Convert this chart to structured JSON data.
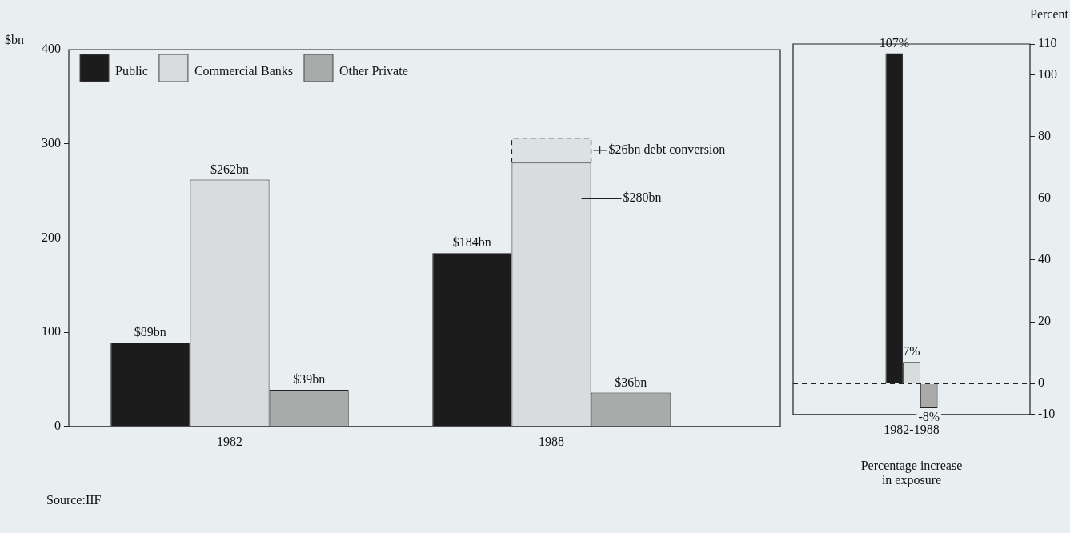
{
  "chart_data": [
    {
      "type": "bar",
      "ylabel": "$bn",
      "categories": [
        "1982",
        "1988"
      ],
      "series": [
        {
          "name": "Public",
          "color": "#1c1c1c",
          "values": [
            89,
            184
          ],
          "value_labels": [
            "$89bn",
            "$184bn"
          ]
        },
        {
          "name": "Commercial Banks",
          "color": "#d9dcdc",
          "values": [
            262,
            280
          ],
          "value_labels": [
            "$262bn",
            "$280bn"
          ]
        },
        {
          "color": "#222222",
          "line_style": "dashed",
          "values": [
            null,
            26
          ],
          "base": [
            null,
            280
          ],
          "value_labels": [
            null,
            "$26bn debt conversion"
          ]
        },
        {
          "name": "Other Private",
          "color": "#a9abab",
          "values": [
            39,
            36
          ],
          "value_labels": [
            "$39bn",
            "$36bn"
          ]
        }
      ],
      "ylim": [
        0,
        400
      ],
      "yticks": [
        0,
        100,
        200,
        300,
        400
      ],
      "grid": false,
      "legend": "top left",
      "annotations": [
        "Source:IIF"
      ]
    },
    {
      "type": "bar",
      "ylabel": "Percent",
      "xlabel": "Percentage increase\nin exposure",
      "categories": [
        "1982-1988"
      ],
      "series": [
        {
          "color": "#1c1c1c",
          "values": [
            107
          ],
          "value_labels": [
            "107%"
          ]
        },
        {
          "color": "#d9dcdc",
          "values": [
            7
          ],
          "value_labels": [
            "7%"
          ]
        },
        {
          "color": "#a9abab",
          "values": [
            -8
          ],
          "value_labels": [
            "-8%"
          ]
        }
      ],
      "ylim": [
        -10,
        110
      ],
      "yticks": [
        -10,
        0,
        20,
        40,
        60,
        80,
        100,
        110
      ],
      "grid": false,
      "legend": false,
      "ref_lines": [
        {
          "axis": "y",
          "value": 0,
          "line_style": "dashed"
        }
      ]
    }
  ]
}
